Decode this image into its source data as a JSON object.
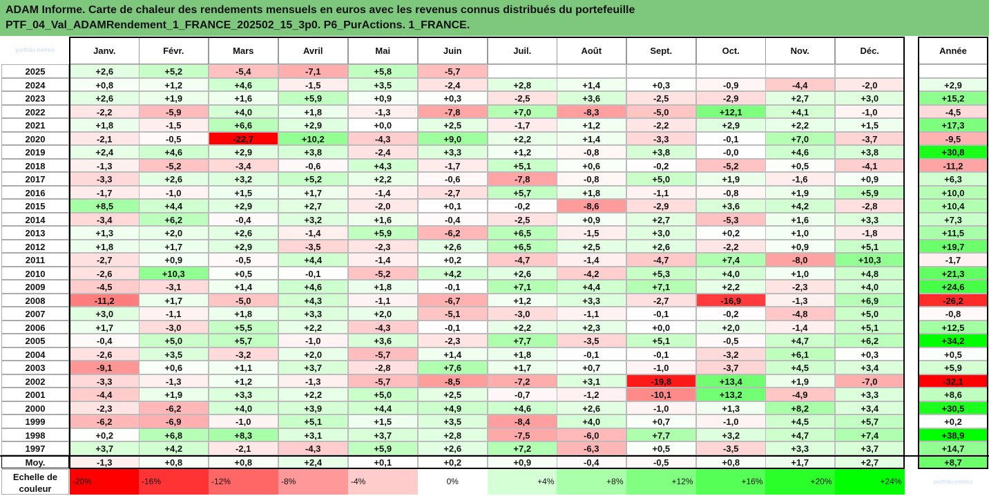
{
  "title": {
    "line1": "ADAM Informe. Carte de chaleur des rendements mensuels en euros avec les revenus connus distribués du portefeuille",
    "line2": "PTF_04_Val_ADAMRendement_1_FRANCE_202502_15_3p0. P6_PurActions. 1_FRANCE."
  },
  "watermark": "portfolio-metrics",
  "chart_data": {
    "type": "heatmap",
    "months": [
      "Janv.",
      "Févr.",
      "Mars",
      "Avril",
      "Mai",
      "Juin",
      "Juil.",
      "Août",
      "Sept.",
      "Oct.",
      "Nov.",
      "Déc."
    ],
    "year_header": "Année",
    "rows": [
      {
        "year": "2025",
        "values": [
          "+2,6",
          "+5,2",
          "-5,4",
          "-7,1",
          "+5,8",
          "-5,7",
          "",
          "",
          "",
          "",
          "",
          ""
        ],
        "annual": ""
      },
      {
        "year": "2024",
        "values": [
          "+0,8",
          "+1,2",
          "+4,6",
          "-1,5",
          "+3,5",
          "-2,4",
          "+2,8",
          "+1,4",
          "+0,3",
          "-0,9",
          "-4,4",
          "-2,0"
        ],
        "annual": "+2,9"
      },
      {
        "year": "2023",
        "values": [
          "+2,6",
          "+1,9",
          "+1,6",
          "+5,9",
          "+0,9",
          "+0,3",
          "-2,5",
          "+3,6",
          "-2,5",
          "-2,9",
          "+2,7",
          "+3,0"
        ],
        "annual": "+15,2"
      },
      {
        "year": "2022",
        "values": [
          "-2,2",
          "-5,9",
          "+4,0",
          "+1,8",
          "-1,3",
          "-7,8",
          "+7,0",
          "-8,3",
          "-5,0",
          "+12,1",
          "+4,1",
          "-1,0"
        ],
        "annual": "-4,5"
      },
      {
        "year": "2021",
        "values": [
          "+1,8",
          "-1,5",
          "+6,6",
          "+2,9",
          "+0,0",
          "+2,5",
          "-1,7",
          "+1,2",
          "-2,2",
          "+2,9",
          "+2,2",
          "+1,5"
        ],
        "annual": "+17,3"
      },
      {
        "year": "2020",
        "values": [
          "-2,1",
          "-0,5",
          "-22,7",
          "+10,2",
          "-4,3",
          "+9,0",
          "+2,2",
          "+1,4",
          "-3,3",
          "-0,1",
          "+7,0",
          "-3,7"
        ],
        "annual": "-9,5"
      },
      {
        "year": "2019",
        "values": [
          "+2,4",
          "+4,6",
          "+2,9",
          "+3,8",
          "-2,4",
          "+3,3",
          "+1,2",
          "-0,8",
          "+3,8",
          "-0,0",
          "+4,6",
          "+3,8"
        ],
        "annual": "+30,8"
      },
      {
        "year": "2018",
        "values": [
          "-1,3",
          "-5,2",
          "-3,4",
          "-0,6",
          "+4,3",
          "-1,7",
          "+5,1",
          "+0,6",
          "-0,2",
          "-5,2",
          "+0,5",
          "-4,1"
        ],
        "annual": "-11,2"
      },
      {
        "year": "2017",
        "values": [
          "-3,3",
          "+2,6",
          "+3,2",
          "+5,2",
          "+2,2",
          "-0,6",
          "-7,8",
          "-0,8",
          "+5,0",
          "+1,9",
          "-1,6",
          "+0,9"
        ],
        "annual": "+6,3"
      },
      {
        "year": "2016",
        "values": [
          "-1,7",
          "-1,0",
          "+1,5",
          "+1,7",
          "-1,4",
          "-2,7",
          "+5,7",
          "+1,8",
          "-1,1",
          "-0,8",
          "+1,9",
          "+5,9"
        ],
        "annual": "+10,0"
      },
      {
        "year": "2015",
        "values": [
          "+8,5",
          "+4,4",
          "+2,9",
          "+2,7",
          "-2,0",
          "+0,1",
          "-0,2",
          "-8,6",
          "-2,9",
          "+3,6",
          "+4,2",
          "-2,8"
        ],
        "annual": "+10,4"
      },
      {
        "year": "2014",
        "values": [
          "-3,4",
          "+6,2",
          "-0,4",
          "+3,2",
          "+1,6",
          "-0,4",
          "-2,5",
          "+0,9",
          "+2,7",
          "-5,3",
          "+1,6",
          "+3,3"
        ],
        "annual": "+7,3"
      },
      {
        "year": "2013",
        "values": [
          "+1,3",
          "+2,0",
          "+2,6",
          "-1,4",
          "+5,9",
          "-6,2",
          "+6,5",
          "-1,5",
          "+3,0",
          "+0,2",
          "+1,0",
          "-1,8"
        ],
        "annual": "+11,5"
      },
      {
        "year": "2012",
        "values": [
          "+1,8",
          "+1,7",
          "+2,9",
          "-3,5",
          "-2,3",
          "+2,6",
          "+6,5",
          "+2,5",
          "+2,6",
          "-2,2",
          "+0,9",
          "+5,1"
        ],
        "annual": "+19,7"
      },
      {
        "year": "2011",
        "values": [
          "-2,7",
          "+0,9",
          "-0,5",
          "+4,4",
          "-1,4",
          "+0,2",
          "-4,7",
          "-1,4",
          "-4,7",
          "+7,4",
          "-8,0",
          "+10,3"
        ],
        "annual": "-1,7"
      },
      {
        "year": "2010",
        "values": [
          "-2,6",
          "+10,3",
          "+0,5",
          "-0,1",
          "-5,2",
          "+4,2",
          "+2,6",
          "-4,2",
          "+5,3",
          "+4,0",
          "+1,0",
          "+4,8"
        ],
        "annual": "+21,3"
      },
      {
        "year": "2009",
        "values": [
          "-4,5",
          "-3,1",
          "+1,4",
          "+4,6",
          "+1,8",
          "-0,1",
          "+7,1",
          "+4,4",
          "+7,1",
          "+2,2",
          "-2,3",
          "+4,0"
        ],
        "annual": "+24,6"
      },
      {
        "year": "2008",
        "values": [
          "-11,2",
          "+1,7",
          "-5,0",
          "+4,3",
          "-1,1",
          "-6,7",
          "+1,2",
          "+3,3",
          "-2,7",
          "-16,9",
          "-1,3",
          "+6,9"
        ],
        "annual": "-26,2"
      },
      {
        "year": "2007",
        "values": [
          "+3,0",
          "-1,1",
          "+1,8",
          "+3,3",
          "+2,0",
          "-5,1",
          "-3,0",
          "-1,1",
          "-0,1",
          "-0,2",
          "-4,8",
          "+5,0"
        ],
        "annual": "-0,8"
      },
      {
        "year": "2006",
        "values": [
          "+1,7",
          "-3,0",
          "+5,5",
          "+2,2",
          "-4,3",
          "-0,1",
          "+2,2",
          "+2,3",
          "+0,0",
          "+2,0",
          "-1,4",
          "+5,1"
        ],
        "annual": "+12,5"
      },
      {
        "year": "2005",
        "values": [
          "-0,4",
          "+5,0",
          "+5,7",
          "-1,0",
          "+3,6",
          "-2,3",
          "+7,7",
          "-3,5",
          "+5,1",
          "-0,5",
          "+4,7",
          "+6,2"
        ],
        "annual": "+34,2"
      },
      {
        "year": "2004",
        "values": [
          "-2,6",
          "+3,5",
          "-3,2",
          "+2,0",
          "-5,7",
          "+1,4",
          "+1,8",
          "-0,1",
          "-0,1",
          "-3,2",
          "+6,1",
          "+0,3"
        ],
        "annual": "+0,5"
      },
      {
        "year": "2003",
        "values": [
          "-9,1",
          "+0,6",
          "+1,1",
          "+3,7",
          "-2,8",
          "+7,6",
          "+1,7",
          "+0,7",
          "-1,0",
          "-3,7",
          "+4,5",
          "+3,4"
        ],
        "annual": "+5,9"
      },
      {
        "year": "2002",
        "values": [
          "-3,3",
          "-1,3",
          "+1,2",
          "-1,3",
          "-5,7",
          "-8,5",
          "-7,2",
          "+3,1",
          "-19,8",
          "+13,4",
          "+1,9",
          "-7,0"
        ],
        "annual": "-32,1"
      },
      {
        "year": "2001",
        "values": [
          "-4,4",
          "+1,9",
          "+3,3",
          "+2,2",
          "+5,0",
          "+2,5",
          "-0,7",
          "-1,2",
          "-10,1",
          "+13,2",
          "-4,9",
          "+3,3"
        ],
        "annual": "+8,6"
      },
      {
        "year": "2000",
        "values": [
          "-2,3",
          "-6,2",
          "+4,0",
          "+3,9",
          "+4,4",
          "+4,9",
          "+4,6",
          "+2,6",
          "-1,0",
          "+1,3",
          "+8,2",
          "+3,4"
        ],
        "annual": "+30,5"
      },
      {
        "year": "1999",
        "values": [
          "-6,2",
          "-6,9",
          "-1,0",
          "+5,1",
          "+1,5",
          "+3,5",
          "-8,4",
          "+4,0",
          "+0,7",
          "-1,0",
          "+4,5",
          "+5,7"
        ],
        "annual": "+0,2"
      },
      {
        "year": "1998",
        "values": [
          "+0,2",
          "+6,8",
          "+8,3",
          "+3,1",
          "+3,7",
          "+2,8",
          "-7,5",
          "-6,0",
          "+7,7",
          "+3,2",
          "+4,7",
          "+7,4"
        ],
        "annual": "+38,9"
      },
      {
        "year": "1997",
        "values": [
          "+3,7",
          "+4,2",
          "-2,1",
          "-4,3",
          "+5,9",
          "+2,6",
          "+7,2",
          "-6,3",
          "+0,5",
          "-3,5",
          "+3,3",
          "+3,7"
        ],
        "annual": "+14,7"
      }
    ],
    "average": {
      "label": "Moy.",
      "values": [
        "-1,3",
        "+0,8",
        "+0,8",
        "+2,4",
        "+0,1",
        "+0,2",
        "+0,9",
        "-0,4",
        "-0,5",
        "+0,8",
        "+1,7",
        "+2,7"
      ],
      "annual": "+8,7"
    },
    "scale": {
      "label_line1": "Echelle de",
      "label_line2": "couleur",
      "labels": [
        "-20%",
        "-16%",
        "-12%",
        "-8%",
        "-4%",
        "0%",
        "+4%",
        "+8%",
        "+12%",
        "+16%",
        "+20%",
        "+24%"
      ],
      "values": [
        -20,
        -16,
        -12,
        -8,
        -4,
        0,
        4,
        8,
        12,
        16,
        20,
        24
      ]
    },
    "colors": {
      "negative": "#ff0000",
      "positive": "#00ff00",
      "neutral": "#ffffff",
      "header_bg": "#7ec87e"
    }
  }
}
